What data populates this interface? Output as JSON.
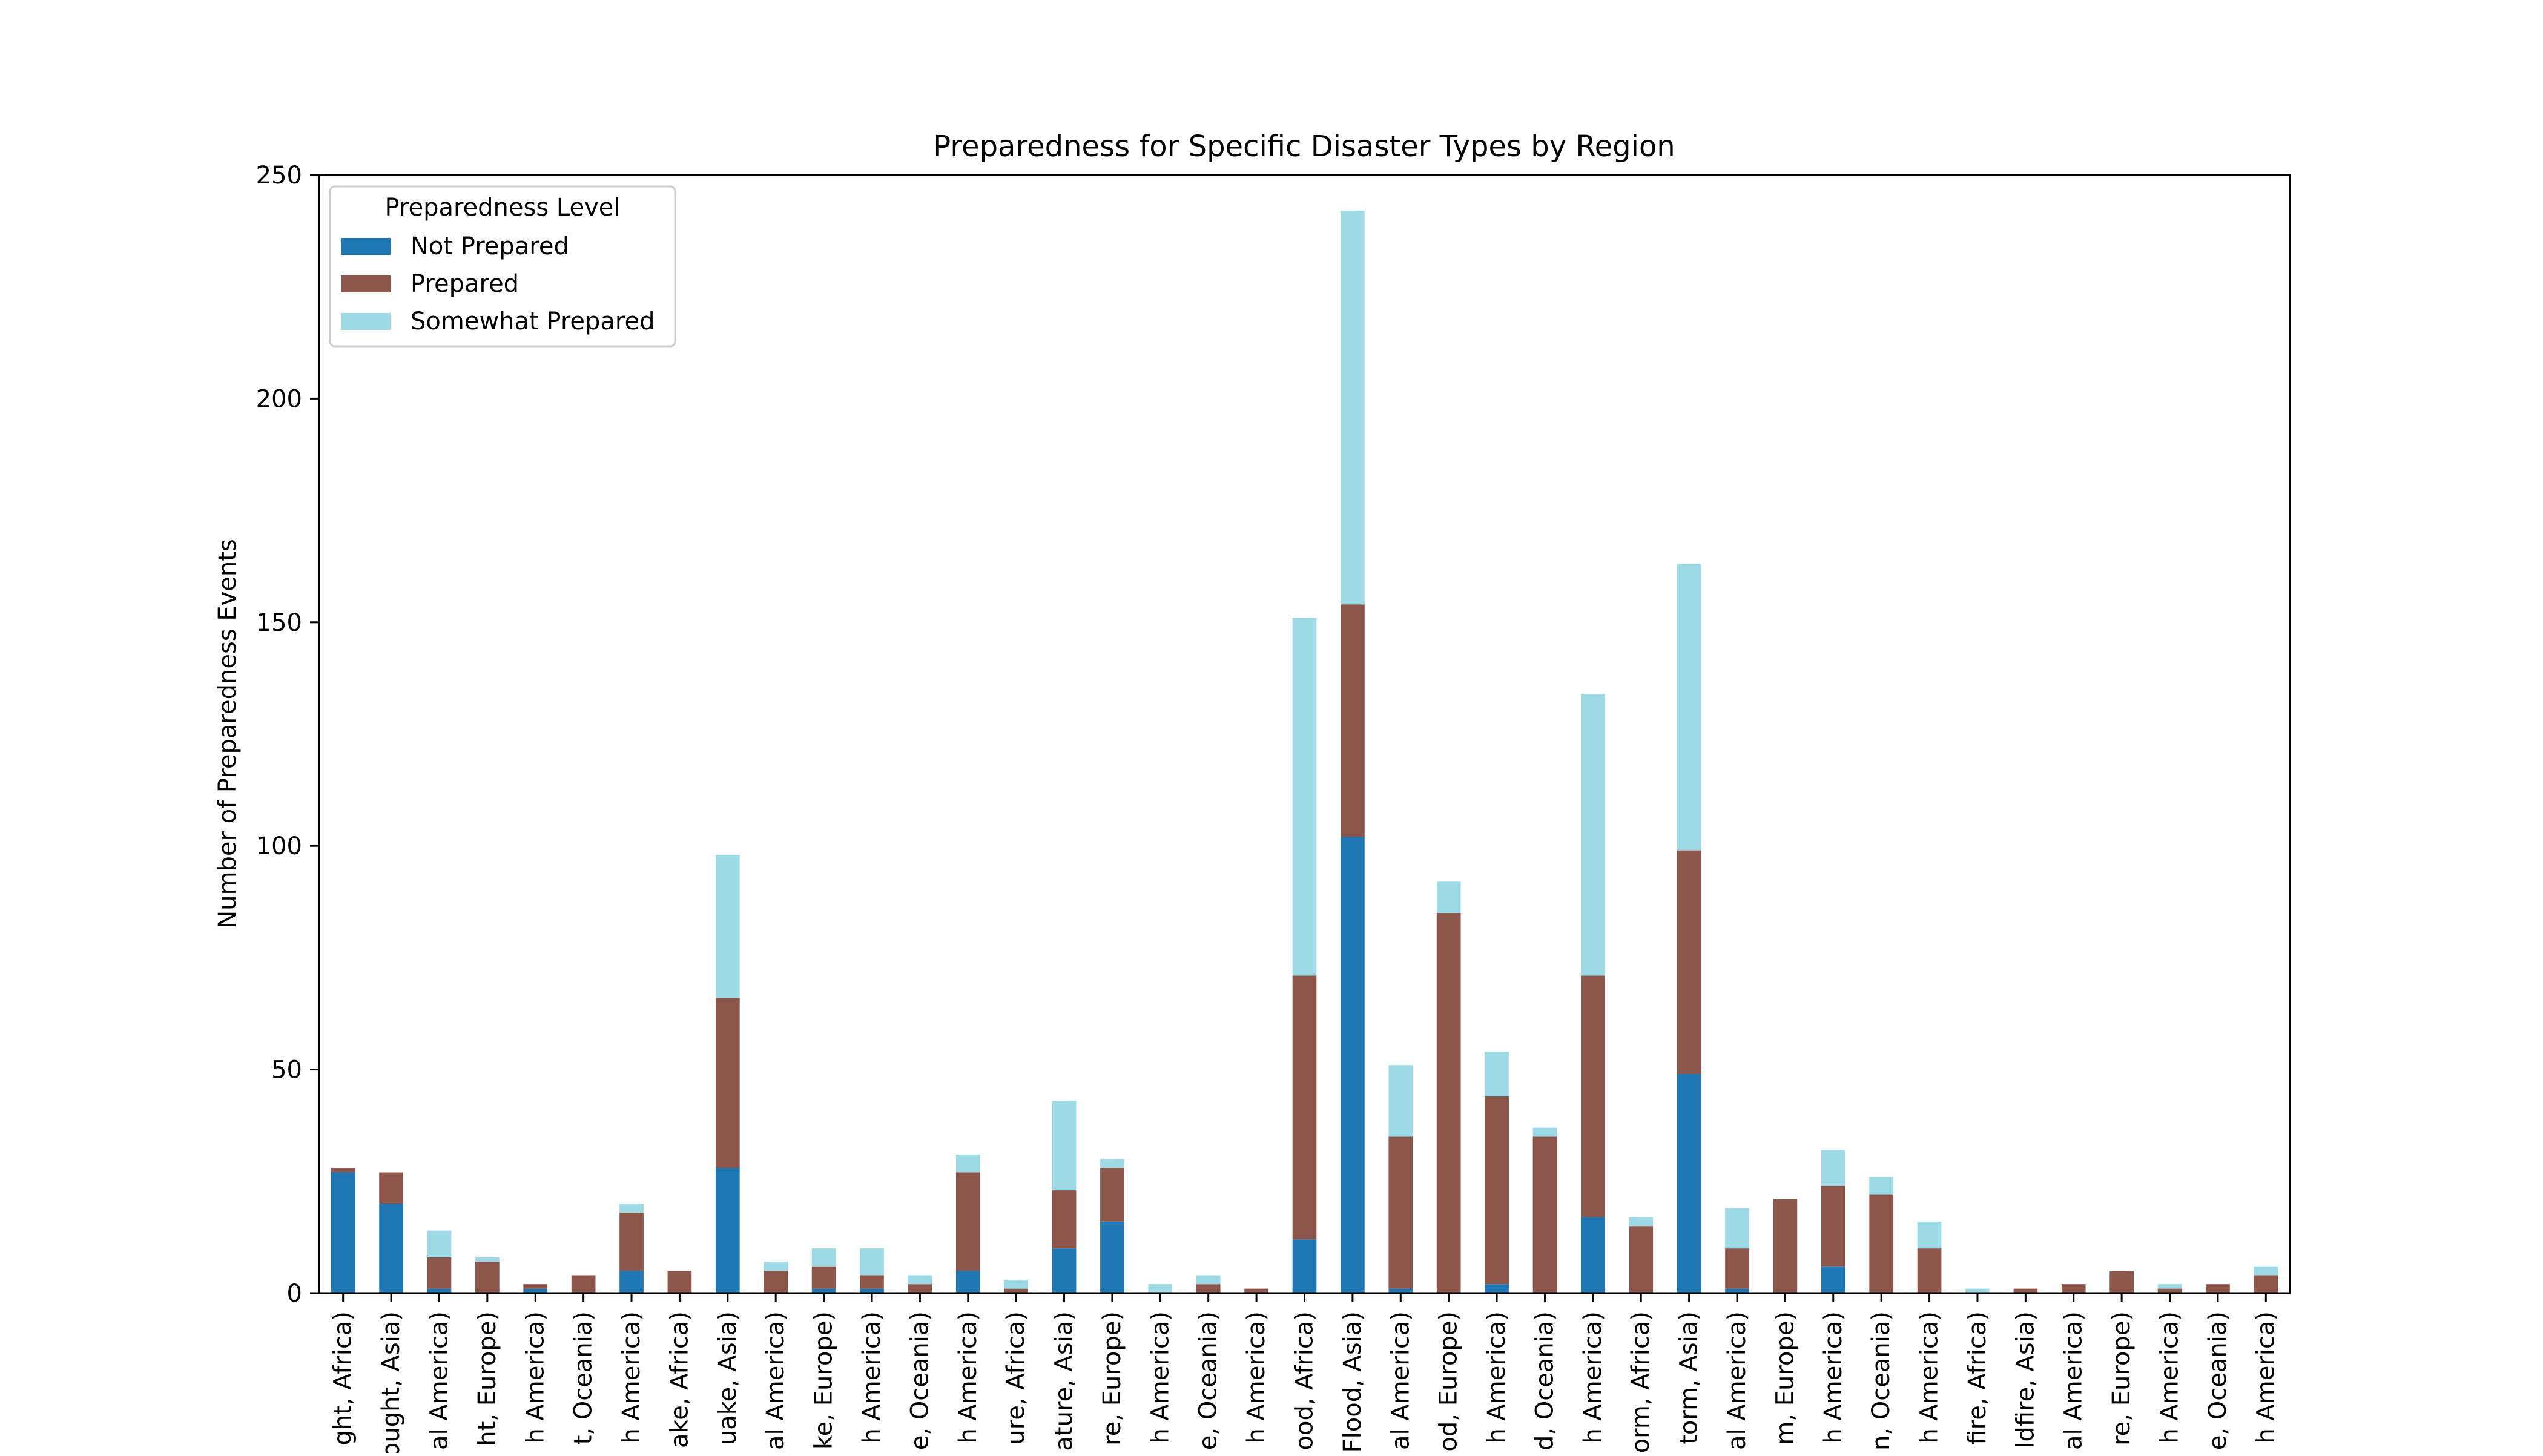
{
  "chart_data": {
    "type": "bar",
    "stacked": true,
    "title": "Preparedness for Specific Disaster Types by Region",
    "xlabel": "",
    "ylabel": "Number of Preparedness Events",
    "ylim": [
      0,
      250
    ],
    "yticks": [
      0,
      50,
      100,
      150,
      200,
      250
    ],
    "grid": false,
    "legend": {
      "title": "Preparedness Level",
      "placement": "top-left"
    },
    "categories": [
      "ght, Africa)",
      "ought, Asia)",
      "al America)",
      "ht, Europe)",
      "h America)",
      "t, Oceania)",
      "h America)",
      "ake, Africa)",
      "uake, Asia)",
      "al America)",
      "ke, Europe)",
      "h America)",
      "e, Oceania)",
      "h America)",
      "ure, Africa)",
      "ature, Asia)",
      "re, Europe)",
      "h America)",
      "e, Oceania)",
      "h America)",
      "ood, Africa)",
      "Flood, Asia)",
      "al America)",
      "od, Europe)",
      "h America)",
      "d, Oceania)",
      "h America)",
      "orm, Africa)",
      "torm, Asia)",
      "al America)",
      "m, Europe)",
      "h America)",
      "n, Oceania)",
      "h America)",
      "fire, Africa)",
      "ldfire, Asia)",
      "al America)",
      "re, Europe)",
      "h America)",
      "e, Oceania)",
      "h America)"
    ],
    "series": [
      {
        "name": "Not Prepared",
        "color": "#1f77b4",
        "values": [
          27,
          20,
          1,
          0,
          1,
          0,
          5,
          0,
          28,
          0,
          1,
          1,
          0,
          5,
          0,
          10,
          16,
          0,
          0,
          0,
          12,
          102,
          1,
          0,
          2,
          0,
          17,
          0,
          49,
          1,
          0,
          6,
          0,
          0,
          0,
          0,
          0,
          0,
          0,
          0,
          0
        ]
      },
      {
        "name": "Prepared",
        "color": "#8c564b",
        "values": [
          1,
          7,
          7,
          7,
          1,
          4,
          13,
          5,
          38,
          5,
          5,
          3,
          2,
          22,
          1,
          13,
          12,
          0,
          2,
          1,
          59,
          52,
          34,
          85,
          42,
          35,
          54,
          15,
          50,
          9,
          21,
          18,
          22,
          10,
          0,
          1,
          2,
          5,
          1,
          2,
          4
        ]
      },
      {
        "name": "Somewhat Prepared",
        "color": "#9edae5",
        "values": [
          0,
          0,
          6,
          1,
          0,
          0,
          2,
          0,
          32,
          2,
          4,
          6,
          2,
          4,
          2,
          20,
          2,
          2,
          2,
          0,
          80,
          88,
          16,
          7,
          10,
          2,
          63,
          2,
          64,
          9,
          0,
          8,
          4,
          6,
          1,
          0,
          0,
          0,
          1,
          0,
          2
        ]
      }
    ]
  }
}
